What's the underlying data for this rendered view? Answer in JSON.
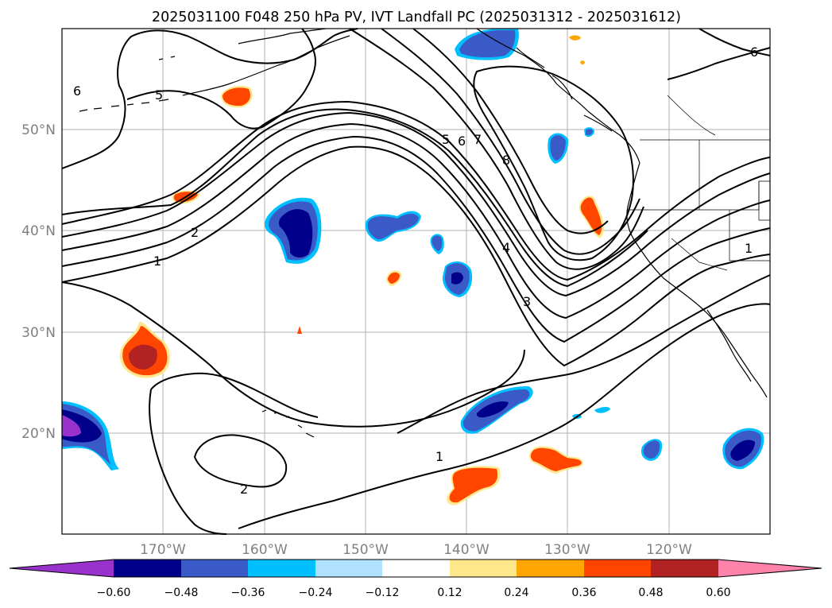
{
  "title": "2025031100 F048 250 hPa PV, IVT Landfall PC (2025031312 - 2025031612)",
  "lat_labels": [
    "50°N",
    "40°N",
    "30°N",
    "20°N"
  ],
  "lon_labels": [
    "170°W",
    "160°W",
    "150°W",
    "140°W",
    "130°W",
    "120°W"
  ],
  "colorbar": {
    "tick_labels": [
      "−0.60",
      "−0.48",
      "−0.36",
      "−0.24",
      "−0.12",
      "0.12",
      "0.24",
      "0.36",
      "0.48",
      "0.60"
    ],
    "colors": [
      "#9932cc",
      "#00008b",
      "#3a5bc7",
      "#00bfff",
      "#b0e2ff",
      "#ffffff",
      "#ffe88c",
      "#ffa500",
      "#ff4500",
      "#b22222",
      "#ff82ab"
    ]
  },
  "contour_labels": [
    "6",
    "5",
    "2",
    "1",
    "5",
    "6",
    "7",
    "8",
    "4",
    "3",
    "1",
    "2",
    "1",
    "6"
  ],
  "colors": {
    "contour": "#000000",
    "grid": "#b0b0b0",
    "coast": "#000000"
  }
}
